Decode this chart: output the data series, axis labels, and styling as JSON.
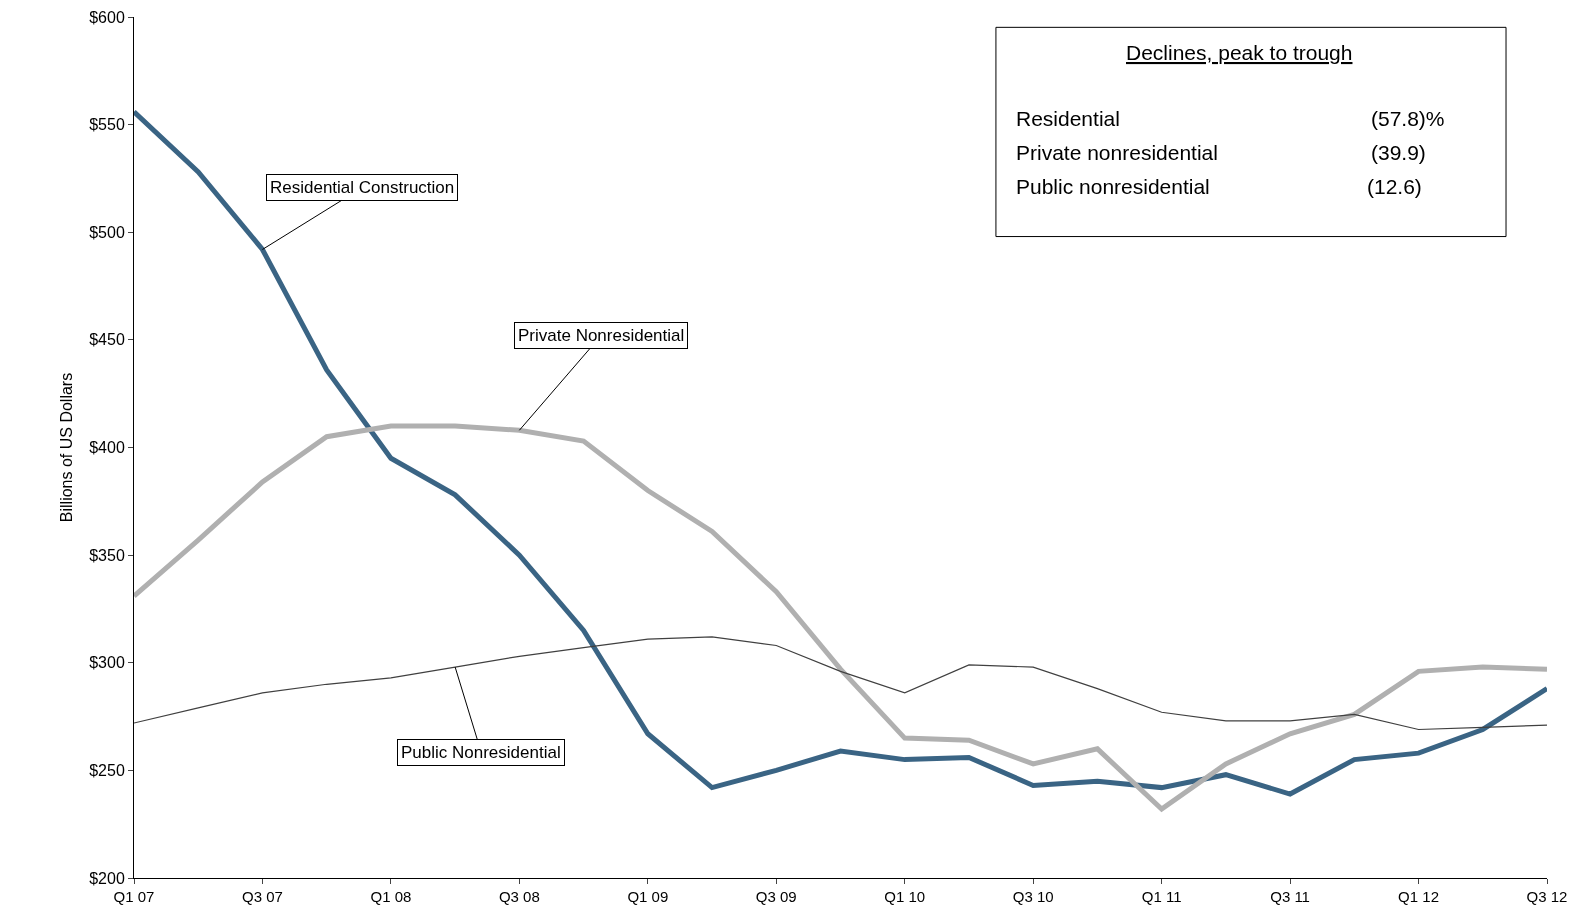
{
  "chart_data": {
    "type": "line",
    "ylabel": "Billions of US Dollars",
    "categories": [
      "Q1 07",
      null,
      "Q3 07",
      null,
      "Q1 08",
      null,
      "Q3 08",
      null,
      "Q1 09",
      null,
      "Q3 09",
      null,
      "Q1 10",
      null,
      "Q3 10",
      null,
      "Q1 11",
      null,
      "Q3 11",
      null,
      "Q1 12",
      null,
      "Q3 12"
    ],
    "series": [
      {
        "name": "Residential Construction",
        "color": "#3a6484",
        "values": [
          556,
          528,
          492,
          436,
          395,
          378,
          350,
          315,
          267,
          242,
          250,
          259,
          255,
          256,
          243,
          245,
          242,
          248,
          239,
          255,
          258,
          269,
          288
        ]
      },
      {
        "name": "Private Nonresidential",
        "color": "#b0b0b0",
        "values": [
          331,
          357,
          384,
          405,
          410,
          410,
          408,
          403,
          380,
          361,
          333,
          297,
          265,
          264,
          253,
          260,
          232,
          253,
          267,
          276,
          296,
          298,
          297
        ]
      },
      {
        "name": "Public Nonresidential",
        "color": "#404040",
        "values": [
          272,
          279,
          286,
          290,
          293,
          298,
          303,
          307,
          311,
          312,
          308,
          296,
          286,
          299,
          298,
          288,
          277,
          273,
          273,
          276,
          269,
          270,
          271
        ]
      }
    ],
    "ylim": [
      200,
      600
    ],
    "yticks": [
      {
        "value": 200,
        "label": "$200"
      },
      {
        "value": 250,
        "label": "$250"
      },
      {
        "value": 300,
        "label": "$300"
      },
      {
        "value": 350,
        "label": "$350"
      },
      {
        "value": 400,
        "label": "$400"
      },
      {
        "value": 450,
        "label": "$450"
      },
      {
        "value": 500,
        "label": "$500"
      },
      {
        "value": 550,
        "label": "$550"
      },
      {
        "value": 600,
        "label": "$600"
      }
    ],
    "grid": false,
    "legend": false,
    "marker": "none",
    "line_style": "solid",
    "annotations": [
      "Declines, peak to trough",
      "Residential",
      "(57.8)%",
      "Private nonresidential",
      "(39.9)",
      "Public nonresidential",
      "(12.6)"
    ]
  }
}
